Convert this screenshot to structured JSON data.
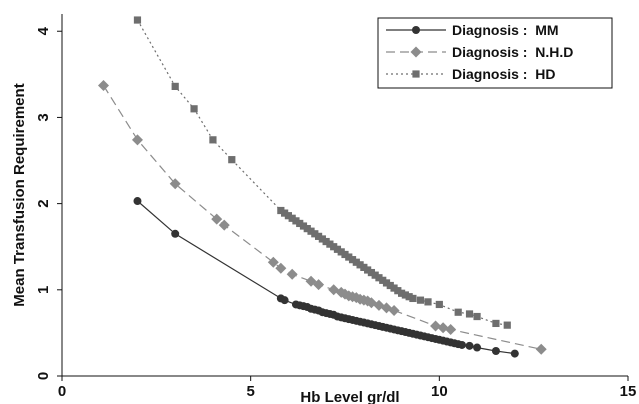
{
  "chart_data": {
    "type": "line",
    "xlabel": "Hb Level gr/dl",
    "ylabel": "Mean Transfusion Requirement",
    "xlim": [
      0,
      15
    ],
    "ylim": [
      0,
      4.2
    ],
    "xticks": [
      0,
      5,
      10,
      15
    ],
    "yticks": [
      0,
      1,
      2,
      3,
      4
    ],
    "grid": false,
    "legend_position": "top-right",
    "series": [
      {
        "name": "Diagnosis :  MM",
        "color": "#333333",
        "line_style": "solid",
        "marker": "circle",
        "points": [
          [
            2.0,
            2.03
          ],
          [
            3.0,
            1.65
          ],
          [
            5.8,
            0.9
          ],
          [
            5.9,
            0.88
          ],
          [
            6.2,
            0.83
          ],
          [
            6.3,
            0.82
          ],
          [
            6.4,
            0.81
          ],
          [
            6.5,
            0.8
          ],
          [
            6.6,
            0.78
          ],
          [
            6.7,
            0.77
          ],
          [
            6.8,
            0.76
          ],
          [
            6.9,
            0.74
          ],
          [
            7.0,
            0.73
          ],
          [
            7.1,
            0.72
          ],
          [
            7.2,
            0.71
          ],
          [
            7.3,
            0.69
          ],
          [
            7.4,
            0.68
          ],
          [
            7.5,
            0.67
          ],
          [
            7.6,
            0.66
          ],
          [
            7.7,
            0.65
          ],
          [
            7.8,
            0.64
          ],
          [
            7.9,
            0.63
          ],
          [
            8.0,
            0.62
          ],
          [
            8.1,
            0.61
          ],
          [
            8.2,
            0.6
          ],
          [
            8.3,
            0.59
          ],
          [
            8.4,
            0.58
          ],
          [
            8.5,
            0.57
          ],
          [
            8.6,
            0.56
          ],
          [
            8.7,
            0.55
          ],
          [
            8.8,
            0.54
          ],
          [
            8.9,
            0.53
          ],
          [
            9.0,
            0.52
          ],
          [
            9.1,
            0.51
          ],
          [
            9.2,
            0.5
          ],
          [
            9.3,
            0.49
          ],
          [
            9.4,
            0.48
          ],
          [
            9.5,
            0.47
          ],
          [
            9.6,
            0.46
          ],
          [
            9.7,
            0.45
          ],
          [
            9.8,
            0.44
          ],
          [
            9.9,
            0.43
          ],
          [
            10.0,
            0.42
          ],
          [
            10.1,
            0.41
          ],
          [
            10.2,
            0.4
          ],
          [
            10.3,
            0.39
          ],
          [
            10.4,
            0.38
          ],
          [
            10.5,
            0.37
          ],
          [
            10.6,
            0.36
          ],
          [
            10.8,
            0.35
          ],
          [
            11.0,
            0.33
          ],
          [
            11.5,
            0.29
          ],
          [
            12.0,
            0.26
          ]
        ]
      },
      {
        "name": "Diagnosis :  N.H.D",
        "color": "#8c8c8c",
        "line_style": "dashed",
        "marker": "diamond",
        "points": [
          [
            1.1,
            3.37
          ],
          [
            2.0,
            2.74
          ],
          [
            3.0,
            2.23
          ],
          [
            4.1,
            1.82
          ],
          [
            4.3,
            1.75
          ],
          [
            5.6,
            1.32
          ],
          [
            5.8,
            1.25
          ],
          [
            6.1,
            1.18
          ],
          [
            6.6,
            1.1
          ],
          [
            6.8,
            1.06
          ],
          [
            7.2,
            1.0
          ],
          [
            7.4,
            0.97
          ],
          [
            7.5,
            0.95
          ],
          [
            7.6,
            0.93
          ],
          [
            7.7,
            0.92
          ],
          [
            7.8,
            0.91
          ],
          [
            7.9,
            0.89
          ],
          [
            8.0,
            0.88
          ],
          [
            8.1,
            0.87
          ],
          [
            8.2,
            0.85
          ],
          [
            8.4,
            0.82
          ],
          [
            8.6,
            0.79
          ],
          [
            8.8,
            0.76
          ],
          [
            9.9,
            0.58
          ],
          [
            10.1,
            0.56
          ],
          [
            10.3,
            0.54
          ],
          [
            12.7,
            0.31
          ]
        ]
      },
      {
        "name": "Diagnosis :  HD",
        "color": "#6e6e6e",
        "line_style": "dotted",
        "marker": "square",
        "points": [
          [
            2.0,
            4.13
          ],
          [
            3.0,
            3.36
          ],
          [
            3.5,
            3.1
          ],
          [
            4.0,
            2.74
          ],
          [
            4.5,
            2.51
          ],
          [
            5.8,
            1.92
          ],
          [
            5.9,
            1.89
          ],
          [
            6.0,
            1.86
          ],
          [
            6.1,
            1.83
          ],
          [
            6.2,
            1.8
          ],
          [
            6.3,
            1.77
          ],
          [
            6.4,
            1.74
          ],
          [
            6.5,
            1.71
          ],
          [
            6.6,
            1.68
          ],
          [
            6.7,
            1.65
          ],
          [
            6.8,
            1.62
          ],
          [
            6.9,
            1.59
          ],
          [
            7.0,
            1.56
          ],
          [
            7.1,
            1.53
          ],
          [
            7.2,
            1.5
          ],
          [
            7.3,
            1.47
          ],
          [
            7.4,
            1.44
          ],
          [
            7.5,
            1.41
          ],
          [
            7.6,
            1.38
          ],
          [
            7.7,
            1.35
          ],
          [
            7.8,
            1.32
          ],
          [
            7.9,
            1.29
          ],
          [
            8.0,
            1.26
          ],
          [
            8.1,
            1.23
          ],
          [
            8.2,
            1.2
          ],
          [
            8.3,
            1.17
          ],
          [
            8.4,
            1.14
          ],
          [
            8.5,
            1.11
          ],
          [
            8.6,
            1.08
          ],
          [
            8.7,
            1.05
          ],
          [
            8.8,
            1.02
          ],
          [
            8.9,
            0.99
          ],
          [
            9.0,
            0.96
          ],
          [
            9.1,
            0.94
          ],
          [
            9.2,
            0.92
          ],
          [
            9.3,
            0.9
          ],
          [
            9.5,
            0.88
          ],
          [
            9.7,
            0.86
          ],
          [
            10.0,
            0.83
          ],
          [
            10.5,
            0.74
          ],
          [
            10.8,
            0.72
          ],
          [
            11.0,
            0.69
          ],
          [
            11.5,
            0.61
          ],
          [
            11.8,
            0.59
          ]
        ]
      }
    ]
  }
}
